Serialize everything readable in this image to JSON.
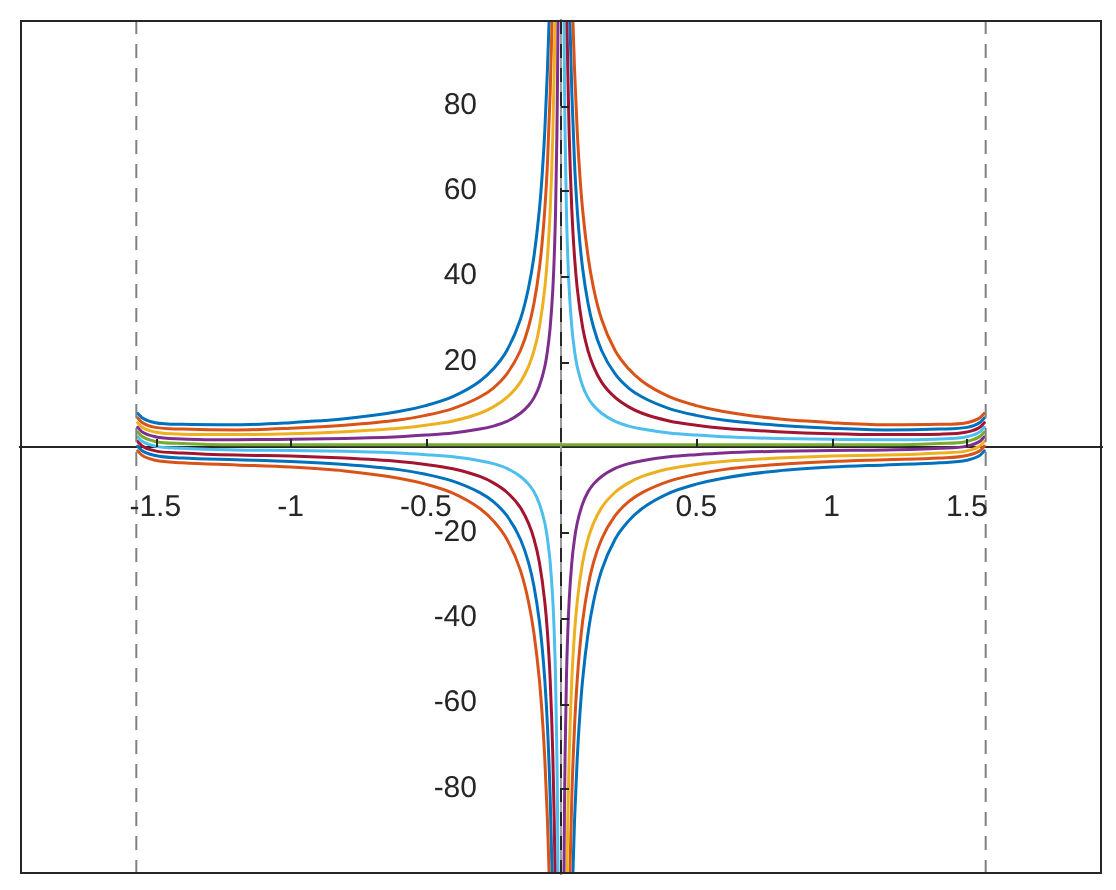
{
  "chart_data": {
    "type": "line",
    "xlim": [
      -2,
      2
    ],
    "ylim": [
      -100,
      100
    ],
    "xticks": [
      -1.5,
      -1,
      -0.5,
      0.5,
      1,
      1.5
    ],
    "yticks": [
      -80,
      -60,
      -40,
      -20,
      20,
      40,
      60,
      80
    ],
    "ref_lines": [
      {
        "axis": "x",
        "value": -1.57,
        "color": "#808080",
        "line_style": "dashed"
      },
      {
        "axis": "x",
        "value": 1.57,
        "color": "#808080",
        "line_style": "dashed"
      },
      {
        "axis": "x",
        "value": 0,
        "color": "#262626",
        "line_style": "dashed"
      }
    ],
    "series": [
      {
        "color": "#0072bd",
        "x": [
          -1.565,
          -1.55,
          -1.5,
          -1.4,
          -1.2,
          -1,
          -0.8,
          -0.6,
          -0.5,
          -0.4,
          -0.3,
          -0.25,
          -0.2,
          -0.15,
          -0.12,
          -0.1,
          -0.08,
          -0.07,
          -0.06,
          -0.05,
          -0.044,
          0,
          0.044,
          0.05,
          0.06,
          0.07,
          0.08,
          0.1,
          0.12,
          0.15,
          0.2,
          0.25,
          0.3,
          0.4,
          0.5,
          0.6,
          0.8,
          1,
          1.2,
          1.4,
          1.5,
          1.55,
          1.565
        ],
        "values": [
          7.9,
          6.9,
          5.7,
          5.3,
          5.2,
          5.7,
          6.6,
          8.3,
          9.7,
          11.8,
          15.4,
          18.3,
          22.6,
          29.9,
          37.3,
          44.6,
          55.5,
          63.4,
          73.9,
          88.5,
          100,
          null,
          -100,
          -87.5,
          -72.9,
          -62.4,
          -54.5,
          -43.6,
          -36.3,
          -28.9,
          -21.6,
          -17.3,
          -14.4,
          -10.8,
          -8.7,
          -7.3,
          -5.6,
          -4.7,
          -4.2,
          -3.7,
          -3.1,
          -1.9,
          -0.9
        ]
      },
      {
        "color": "#d95319",
        "x": [
          -1.565,
          -1.55,
          -1.5,
          -1.4,
          -1.2,
          -1,
          -0.8,
          -0.6,
          -0.5,
          -0.4,
          -0.3,
          -0.25,
          -0.2,
          -0.15,
          -0.12,
          -0.1,
          -0.08,
          -0.07,
          -0.06,
          -0.05,
          -0.04,
          -0.033,
          0,
          0.033,
          0.04,
          0.05,
          0.06,
          0.07,
          0.08,
          0.1,
          0.12,
          0.15,
          0.2,
          0.25,
          0.3,
          0.4,
          0.5,
          0.6,
          0.8,
          1,
          1.2,
          1.4,
          1.5,
          1.55,
          1.565
        ],
        "values": [
          6.8,
          5.8,
          4.6,
          4.2,
          4.0,
          4.4,
          5.1,
          6.3,
          7.4,
          9.0,
          11.7,
          13.8,
          17.1,
          22.6,
          28.1,
          33.6,
          41.8,
          47.7,
          55.5,
          66.5,
          83.0,
          100,
          null,
          -100,
          -82.0,
          -65.5,
          -54.5,
          -46.7,
          -40.8,
          -32.6,
          -27.1,
          -21.6,
          -16.1,
          -12.8,
          -10.7,
          -8.0,
          -6.4,
          -5.3,
          -4.1,
          -3.4,
          -3.0,
          -2.6,
          -2.0,
          -0.8,
          0.2
        ]
      },
      {
        "color": "#edb120",
        "x": [
          -1.565,
          -1.55,
          -1.5,
          -1.4,
          -1.2,
          -1,
          -0.8,
          -0.6,
          -0.5,
          -0.4,
          -0.3,
          -0.25,
          -0.2,
          -0.15,
          -0.12,
          -0.1,
          -0.08,
          -0.06,
          -0.05,
          -0.04,
          -0.03,
          -0.025,
          -0.022,
          0,
          0.022,
          0.025,
          0.03,
          0.04,
          0.05,
          0.06,
          0.08,
          0.1,
          0.12,
          0.15,
          0.2,
          0.25,
          0.3,
          0.4,
          0.5,
          0.6,
          0.8,
          1,
          1.2,
          1.4,
          1.5,
          1.55,
          1.565
        ],
        "values": [
          5.7,
          4.7,
          3.5,
          3.0,
          2.9,
          3.1,
          3.6,
          4.4,
          5.1,
          6.1,
          7.9,
          9.4,
          11.6,
          15.2,
          18.9,
          22.5,
          28.0,
          37.2,
          44.5,
          55.5,
          73.8,
          88.5,
          100,
          null,
          -100,
          -87.5,
          -72.8,
          -54.5,
          -43.5,
          -36.2,
          -27.0,
          -21.5,
          -17.9,
          -14.2,
          -10.6,
          -8.4,
          -6.9,
          -5.1,
          -4.1,
          -3.4,
          -2.6,
          -2.1,
          -1.9,
          -1.4,
          -0.9,
          0.3,
          1.3
        ]
      },
      {
        "color": "#7e2f8e",
        "x": [
          -1.565,
          -1.55,
          -1.5,
          -1.4,
          -1.2,
          -1,
          -0.8,
          -0.6,
          -0.5,
          -0.4,
          -0.3,
          -0.25,
          -0.2,
          -0.15,
          -0.12,
          -0.1,
          -0.08,
          -0.06,
          -0.05,
          -0.04,
          -0.03,
          -0.025,
          -0.02,
          -0.015,
          -0.013,
          -0.011,
          0,
          0.011,
          0.013,
          0.015,
          0.02,
          0.025,
          0.03,
          0.04,
          0.05,
          0.06,
          0.08,
          0.1,
          0.12,
          0.15,
          0.2,
          0.25,
          0.3,
          0.4,
          0.5,
          0.6,
          0.8,
          1,
          1.2,
          1.4,
          1.5,
          1.55,
          1.565
        ],
        "values": [
          4.6,
          3.6,
          2.4,
          1.9,
          1.7,
          1.8,
          2.0,
          2.4,
          2.8,
          3.3,
          4.2,
          4.9,
          6.0,
          7.9,
          9.7,
          11.5,
          14.3,
          18.8,
          22.5,
          28.0,
          37.2,
          44.5,
          55.5,
          73.8,
          85.1,
          100,
          null,
          -100,
          -84.1,
          -72.8,
          -54.5,
          -43.5,
          -36.2,
          -27.0,
          -21.5,
          -17.8,
          -13.3,
          -10.5,
          -8.7,
          -6.9,
          -5.0,
          -3.9,
          -3.2,
          -2.3,
          -1.8,
          -1.4,
          -1.0,
          -0.8,
          -0.7,
          -0.3,
          0.2,
          1.4,
          2.4
        ]
      },
      {
        "color": "#77ac30",
        "x": [
          -1.565,
          -1.55,
          -1.5,
          -1.4,
          -1.2,
          1.2,
          1.4,
          1.5,
          1.55,
          1.565
        ],
        "values": [
          3.5,
          2.5,
          1.3,
          0.8,
          0.5,
          0.5,
          0.8,
          1.3,
          2.5,
          3.5
        ]
      },
      {
        "color": "#4dbeee",
        "x": [
          -1.565,
          -1.55,
          -1.5,
          -1.4,
          -1.2,
          -1,
          -0.8,
          -0.6,
          -0.5,
          -0.4,
          -0.3,
          -0.25,
          -0.2,
          -0.15,
          -0.12,
          -0.1,
          -0.08,
          -0.06,
          -0.05,
          -0.04,
          -0.03,
          -0.025,
          -0.02,
          -0.015,
          -0.013,
          -0.011,
          0,
          0.011,
          0.013,
          0.015,
          0.02,
          0.025,
          0.03,
          0.04,
          0.05,
          0.06,
          0.08,
          0.1,
          0.12,
          0.15,
          0.2,
          0.25,
          0.3,
          0.4,
          0.5,
          0.6,
          0.8,
          1,
          1.2,
          1.4,
          1.5,
          1.55,
          1.565
        ],
        "values": [
          2.4,
          1.4,
          0.2,
          -0.3,
          -0.7,
          -0.8,
          -1.0,
          -1.4,
          -1.8,
          -2.3,
          -3.2,
          -3.9,
          -5.0,
          -6.9,
          -8.7,
          -10.5,
          -13.3,
          -17.8,
          -21.5,
          -27.0,
          -36.2,
          -43.5,
          -54.5,
          -72.8,
          -84.1,
          -100,
          null,
          100,
          85.1,
          73.8,
          55.5,
          44.5,
          37.2,
          28.0,
          22.5,
          18.8,
          14.3,
          11.5,
          9.7,
          7.9,
          6.0,
          4.9,
          4.2,
          3.3,
          2.8,
          2.4,
          2.0,
          1.8,
          1.7,
          1.9,
          2.4,
          3.6,
          4.6
        ]
      },
      {
        "color": "#a2142f",
        "x": [
          -1.565,
          -1.55,
          -1.5,
          -1.4,
          -1.2,
          -1,
          -0.8,
          -0.6,
          -0.5,
          -0.4,
          -0.3,
          -0.25,
          -0.2,
          -0.15,
          -0.12,
          -0.1,
          -0.08,
          -0.06,
          -0.05,
          -0.04,
          -0.03,
          -0.025,
          -0.022,
          0,
          0.022,
          0.025,
          0.03,
          0.04,
          0.05,
          0.06,
          0.08,
          0.1,
          0.12,
          0.15,
          0.2,
          0.25,
          0.3,
          0.4,
          0.5,
          0.6,
          0.8,
          1,
          1.2,
          1.4,
          1.5,
          1.55,
          1.565
        ],
        "values": [
          1.3,
          0.3,
          -0.9,
          -1.4,
          -1.9,
          -2.1,
          -2.6,
          -3.4,
          -4.1,
          -5.1,
          -6.9,
          -8.4,
          -10.6,
          -14.2,
          -17.9,
          -21.5,
          -27.0,
          -36.2,
          -43.5,
          -54.5,
          -72.8,
          -87.5,
          -100,
          null,
          100,
          88.5,
          73.8,
          55.5,
          44.5,
          37.2,
          28.0,
          22.5,
          18.9,
          15.2,
          11.6,
          9.4,
          7.9,
          6.1,
          5.1,
          4.4,
          3.6,
          3.1,
          2.9,
          3.0,
          3.5,
          4.7,
          5.7
        ]
      },
      {
        "color": "#0072bd",
        "x": [
          -1.565,
          -1.55,
          -1.5,
          -1.4,
          -1.2,
          -1,
          -0.8,
          -0.6,
          -0.5,
          -0.4,
          -0.3,
          -0.25,
          -0.2,
          -0.15,
          -0.12,
          -0.1,
          -0.08,
          -0.07,
          -0.06,
          -0.05,
          -0.04,
          -0.033,
          0,
          0.033,
          0.04,
          0.05,
          0.06,
          0.07,
          0.08,
          0.1,
          0.12,
          0.15,
          0.2,
          0.25,
          0.3,
          0.4,
          0.5,
          0.6,
          0.8,
          1,
          1.2,
          1.4,
          1.5,
          1.55,
          1.565
        ],
        "values": [
          0.2,
          -0.8,
          -2.0,
          -2.6,
          -3.0,
          -3.4,
          -4.1,
          -5.3,
          -6.4,
          -8.0,
          -10.7,
          -12.8,
          -16.1,
          -21.6,
          -27.1,
          -32.6,
          -40.8,
          -46.7,
          -54.5,
          -65.5,
          -82.0,
          -100,
          null,
          100,
          83.0,
          66.5,
          55.5,
          47.7,
          41.8,
          33.6,
          28.1,
          22.6,
          17.1,
          13.8,
          11.7,
          9.0,
          7.4,
          6.3,
          5.1,
          4.4,
          4.0,
          4.2,
          4.6,
          5.8,
          6.8
        ]
      },
      {
        "color": "#d95319",
        "x": [
          -1.565,
          -1.55,
          -1.5,
          -1.4,
          -1.2,
          -1,
          -0.8,
          -0.6,
          -0.5,
          -0.4,
          -0.3,
          -0.25,
          -0.2,
          -0.15,
          -0.12,
          -0.1,
          -0.08,
          -0.07,
          -0.06,
          -0.05,
          -0.044,
          0,
          0.044,
          0.05,
          0.06,
          0.07,
          0.08,
          0.1,
          0.12,
          0.15,
          0.2,
          0.25,
          0.3,
          0.4,
          0.5,
          0.6,
          0.8,
          1,
          1.2,
          1.4,
          1.5,
          1.55,
          1.565
        ],
        "values": [
          -0.9,
          -1.9,
          -3.1,
          -3.7,
          -4.2,
          -4.7,
          -5.6,
          -7.3,
          -8.7,
          -10.8,
          -14.4,
          -17.3,
          -21.6,
          -28.9,
          -36.3,
          -43.6,
          -54.5,
          -62.4,
          -72.9,
          -87.5,
          -100,
          null,
          100,
          88.5,
          73.9,
          63.4,
          55.5,
          44.6,
          37.3,
          29.9,
          22.6,
          18.3,
          15.4,
          11.8,
          9.7,
          8.3,
          6.6,
          5.7,
          5.2,
          5.3,
          5.7,
          6.9,
          7.9
        ]
      }
    ]
  }
}
